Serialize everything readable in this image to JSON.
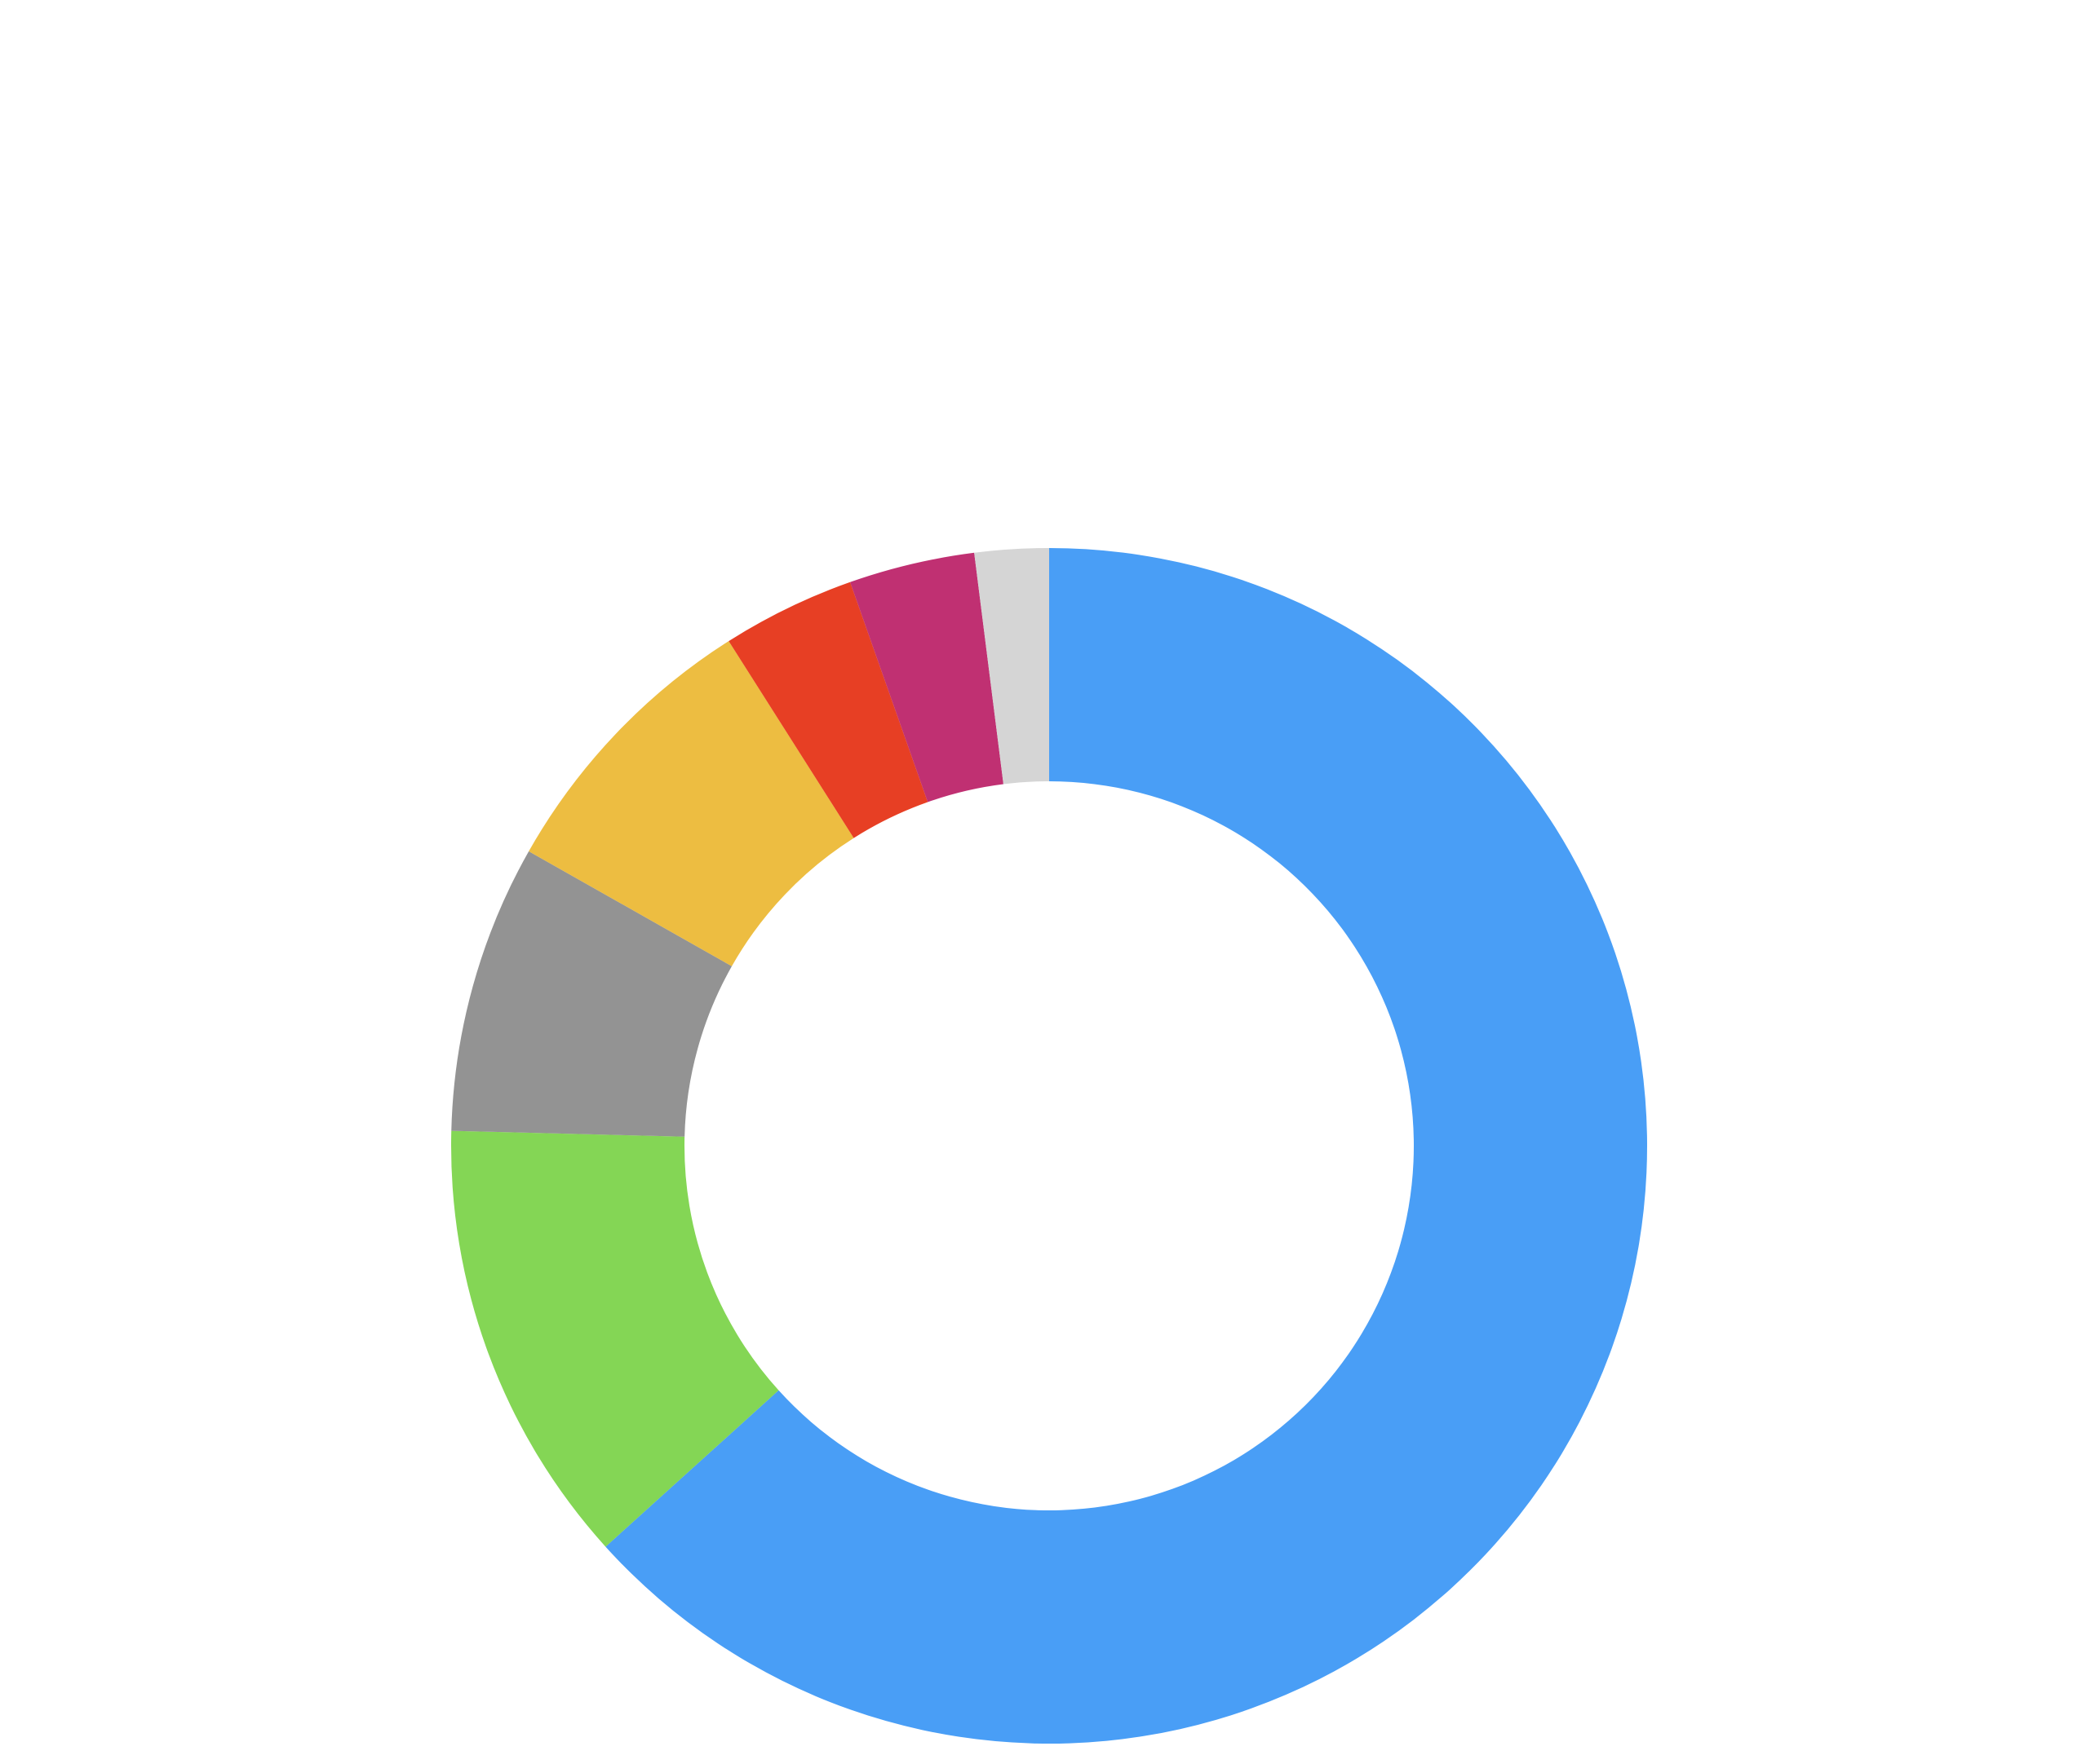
{
  "chart_data": {
    "type": "pie",
    "donut": true,
    "start": "top",
    "direction": "clockwise",
    "legend": "none",
    "title": "",
    "slices": [
      {
        "value": 63.3,
        "color": "#499ef6"
      },
      {
        "value": 12.1,
        "color": "#84d655"
      },
      {
        "value": 7.8,
        "color": "#939393"
      },
      {
        "value": 7.8,
        "color": "#edbd41"
      },
      {
        "value": 3.6,
        "color": "#e73f24"
      },
      {
        "value": 3.4,
        "color": "#c03072"
      },
      {
        "value": 2.0,
        "color": "#d5d5d5"
      }
    ]
  }
}
